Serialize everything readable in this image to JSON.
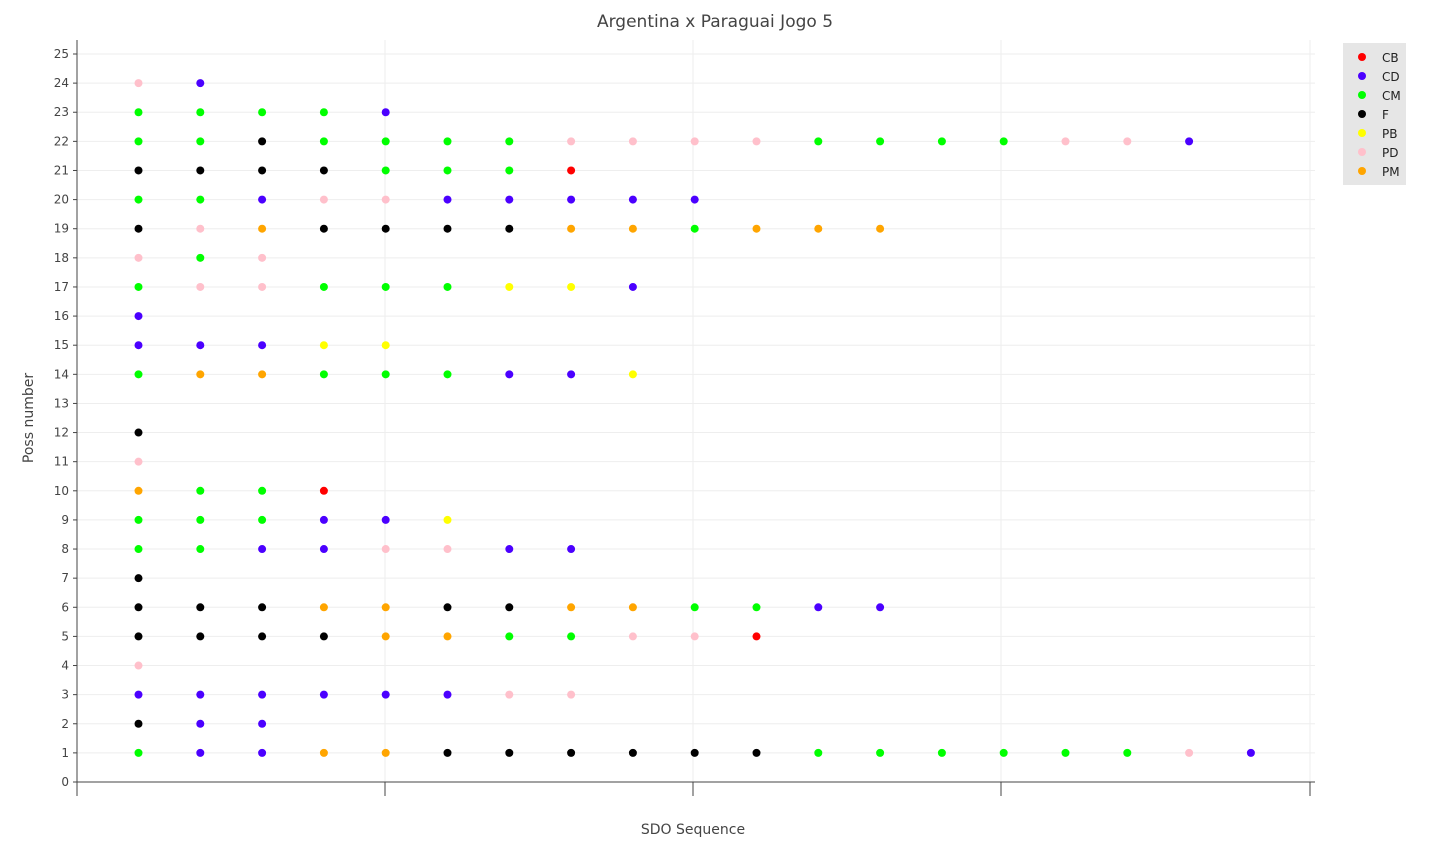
{
  "chart_data": {
    "type": "scatter",
    "title": "Argentina x Paraguai Jogo 5",
    "xlabel": "SDO Sequence",
    "ylabel": "Poss number",
    "xlim": [
      -0.5,
      19.5
    ],
    "ylim": [
      0,
      25
    ],
    "y_ticks": [
      "0",
      "1",
      "2",
      "3",
      "4",
      "5",
      "6",
      "7",
      "8",
      "9",
      "10",
      "11",
      "12",
      "13",
      "14",
      "15",
      "16",
      "17",
      "18",
      "19",
      "20",
      "21",
      "22",
      "23",
      "24",
      "25"
    ],
    "grid": true,
    "legend_position": "top-right",
    "colors": {
      "CB": "#ff0000",
      "CD": "#4b00ff",
      "CM": "#00ff00",
      "F": "#000000",
      "PB": "#ffff00",
      "PD": "#ffc0cb",
      "PM": "#ffa500"
    },
    "series": [
      {
        "name": "CB"
      },
      {
        "name": "CD"
      },
      {
        "name": "CM"
      },
      {
        "name": "F"
      },
      {
        "name": "PB"
      },
      {
        "name": "PD"
      },
      {
        "name": "PM"
      }
    ],
    "possessions": [
      {
        "poss": 1,
        "seq": [
          "CM",
          "CD",
          "CD",
          "PM",
          "PM",
          "F",
          "F",
          "F",
          "F",
          "F",
          "F",
          "CM",
          "CM",
          "CM",
          "CM",
          "CM",
          "CM",
          "PD",
          "CD"
        ]
      },
      {
        "poss": 2,
        "seq": [
          "F",
          "CD",
          "CD"
        ]
      },
      {
        "poss": 3,
        "seq": [
          "CD",
          "CD",
          "CD",
          "CD",
          "CD",
          "CD",
          "PD",
          "PD"
        ]
      },
      {
        "poss": 4,
        "seq": [
          "PD"
        ]
      },
      {
        "poss": 5,
        "seq": [
          "F",
          "F",
          "F",
          "F",
          "PM",
          "PM",
          "CM",
          "CM",
          "PD",
          "PD",
          "CB"
        ]
      },
      {
        "poss": 6,
        "seq": [
          "F",
          "F",
          "F",
          "PM",
          "PM",
          "F",
          "F",
          "PM",
          "PM",
          "CM",
          "CM",
          "CD",
          "CD"
        ]
      },
      {
        "poss": 7,
        "seq": [
          "F"
        ]
      },
      {
        "poss": 8,
        "seq": [
          "CM",
          "CM",
          "CD",
          "CD",
          "PD",
          "PD",
          "CD",
          "CD"
        ]
      },
      {
        "poss": 9,
        "seq": [
          "CM",
          "CM",
          "CM",
          "CD",
          "CD",
          "PB"
        ]
      },
      {
        "poss": 10,
        "seq": [
          "PM",
          "CM",
          "CM",
          "CB"
        ]
      },
      {
        "poss": 11,
        "seq": [
          "PD"
        ]
      },
      {
        "poss": 12,
        "seq": [
          "F"
        ]
      },
      {
        "poss": 14,
        "seq": [
          "CM",
          "PM",
          "PM",
          "CM",
          "CM",
          "CM",
          "CD",
          "CD",
          "PB"
        ]
      },
      {
        "poss": 15,
        "seq": [
          "CD",
          "CD",
          "CD",
          "PB",
          "PB"
        ]
      },
      {
        "poss": 16,
        "seq": [
          "CD"
        ]
      },
      {
        "poss": 17,
        "seq": [
          "CM",
          "PD",
          "PD",
          "CM",
          "CM",
          "CM",
          "PB",
          "PB",
          "CD"
        ]
      },
      {
        "poss": 18,
        "seq": [
          "PD",
          "CM",
          "PD"
        ]
      },
      {
        "poss": 19,
        "seq": [
          "F",
          "PD",
          "PM",
          "F",
          "F",
          "F",
          "F",
          "PM",
          "PM",
          "CM",
          "PM",
          "PM",
          "PM"
        ]
      },
      {
        "poss": 20,
        "seq": [
          "CM",
          "CM",
          "CD",
          "PD",
          "PD",
          "CD",
          "CD",
          "CD",
          "CD",
          "CD"
        ]
      },
      {
        "poss": 21,
        "seq": [
          "F",
          "F",
          "F",
          "F",
          "CM",
          "CM",
          "CM",
          "CB"
        ]
      },
      {
        "poss": 22,
        "seq": [
          "CM",
          "CM",
          "F",
          "CM",
          "CM",
          "CM",
          "CM",
          "PD",
          "PD",
          "PD",
          "PD",
          "CM",
          "CM",
          "CM",
          "CM",
          "PD",
          "PD",
          "CD"
        ]
      },
      {
        "poss": 23,
        "seq": [
          "CM",
          "CM",
          "CM",
          "CM",
          "CD"
        ]
      },
      {
        "poss": 24,
        "seq": [
          "PD",
          "CD"
        ]
      }
    ]
  }
}
